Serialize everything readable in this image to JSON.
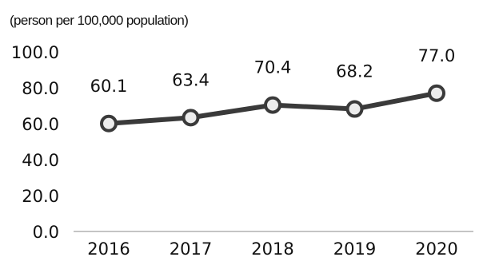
{
  "chart_data": {
    "type": "line",
    "unit_label": "(person per 100,000 population)",
    "categories": [
      "2016",
      "2017",
      "2018",
      "2019",
      "2020"
    ],
    "values": [
      60.1,
      63.4,
      70.4,
      68.2,
      77.0
    ],
    "value_labels": [
      "60.1",
      "63.4",
      "70.4",
      "68.2",
      "77.0"
    ],
    "y_ticks": [
      "0.0",
      "20.0",
      "40.0",
      "60.0",
      "80.0",
      "100.0"
    ],
    "ylim": [
      0,
      100
    ],
    "grid": false,
    "legend": "none",
    "colors": {
      "line": "#3a3a3a",
      "marker_fill": "#ececec",
      "marker_stroke": "#3a3a3a",
      "axis": "#b0b0b0",
      "text": "#111111"
    }
  }
}
